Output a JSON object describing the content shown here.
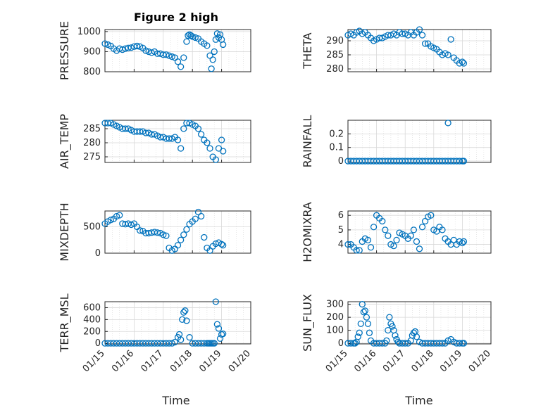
{
  "figure": {
    "title": "Figure 2 high"
  },
  "colors": {
    "marker": "#0072BD",
    "axis": "#262626",
    "grid": "#d9d9d9"
  },
  "chart_data": [
    {
      "type": "scatter",
      "ylabel": "PRESSURE",
      "ylim": [
        800,
        1010
      ],
      "yticks": [
        800,
        900,
        1000
      ],
      "xlim": [
        0,
        5
      ],
      "grid": true,
      "minor_grid": true,
      "series": [
        {
          "x": [
            0.0,
            0.1,
            0.2,
            0.3,
            0.4,
            0.5,
            0.6,
            0.7,
            0.8,
            0.9,
            1.0,
            1.1,
            1.2,
            1.3,
            1.4,
            1.5,
            1.6,
            1.7,
            1.8,
            1.9,
            2.0,
            2.1,
            2.2,
            2.3,
            2.4,
            2.5,
            2.6,
            2.7,
            2.8,
            2.85,
            2.9,
            2.95,
            3.0,
            3.1,
            3.2,
            3.3,
            3.4,
            3.5,
            3.6,
            3.65,
            3.7,
            3.75,
            3.8,
            3.85,
            3.9,
            3.95,
            4.0,
            4.05
          ],
          "y": [
            940,
            935,
            928,
            915,
            905,
            915,
            910,
            915,
            918,
            920,
            925,
            928,
            925,
            918,
            905,
            900,
            895,
            900,
            890,
            890,
            885,
            885,
            880,
            875,
            870,
            850,
            825,
            870,
            950,
            980,
            985,
            980,
            975,
            970,
            965,
            950,
            940,
            930,
            880,
            815,
            860,
            900,
            960,
            990,
            970,
            985,
            960,
            935
          ]
        }
      ]
    },
    {
      "type": "scatter",
      "ylabel": "THETA",
      "ylim": [
        279,
        294
      ],
      "yticks": [
        280,
        285,
        290
      ],
      "xlim": [
        0,
        5
      ],
      "grid": true,
      "minor_grid": true,
      "series": [
        {
          "x": [
            0.0,
            0.1,
            0.2,
            0.3,
            0.4,
            0.5,
            0.6,
            0.7,
            0.8,
            0.9,
            1.0,
            1.1,
            1.2,
            1.3,
            1.4,
            1.5,
            1.6,
            1.7,
            1.8,
            1.9,
            2.0,
            2.1,
            2.2,
            2.3,
            2.4,
            2.5,
            2.6,
            2.7,
            2.8,
            2.9,
            3.0,
            3.1,
            3.2,
            3.3,
            3.4,
            3.5,
            3.6,
            3.7,
            3.8,
            3.9,
            4.0,
            4.05
          ],
          "y": [
            292,
            292.5,
            292,
            293,
            293.5,
            292.5,
            293,
            292,
            291,
            290,
            290.5,
            291,
            291,
            291.5,
            292,
            292,
            292.5,
            292,
            293,
            292.5,
            292.5,
            292,
            293,
            292,
            293,
            294,
            292,
            289,
            289,
            288,
            287.5,
            287,
            286,
            285,
            285.5,
            285,
            290.5,
            284,
            283,
            282,
            282.5,
            282
          ]
        }
      ]
    },
    {
      "type": "scatter",
      "ylabel": "AIR_TEMP",
      "ylim": [
        273,
        288
      ],
      "yticks": [
        275,
        280,
        285
      ],
      "xlim": [
        0,
        5
      ],
      "grid": true,
      "minor_grid": true,
      "series": [
        {
          "x": [
            0.0,
            0.1,
            0.2,
            0.3,
            0.4,
            0.5,
            0.6,
            0.7,
            0.8,
            0.9,
            1.0,
            1.1,
            1.2,
            1.3,
            1.4,
            1.5,
            1.6,
            1.7,
            1.8,
            1.9,
            2.0,
            2.1,
            2.2,
            2.3,
            2.4,
            2.5,
            2.6,
            2.7,
            2.8,
            2.9,
            3.0,
            3.1,
            3.2,
            3.3,
            3.4,
            3.5,
            3.6,
            3.7,
            3.8,
            3.9,
            4.0,
            4.05
          ],
          "y": [
            287,
            287,
            287,
            286.5,
            286,
            285.5,
            285,
            285,
            285,
            284.5,
            284,
            284,
            284,
            284,
            283.5,
            283.5,
            283,
            283,
            282.5,
            282,
            282,
            281.5,
            281.5,
            281.5,
            282,
            281,
            278,
            285,
            287,
            287,
            286.5,
            286,
            285,
            283,
            281,
            280,
            278,
            275,
            274,
            278,
            281,
            277
          ]
        }
      ]
    },
    {
      "type": "scatter",
      "ylabel": "RAINFALL",
      "ylim": [
        -0.01,
        0.3
      ],
      "yticks": [
        0,
        0.1,
        0.2
      ],
      "xlim": [
        0,
        5
      ],
      "grid": true,
      "minor_grid": true,
      "series": [
        {
          "x": [
            0.0,
            0.1,
            0.2,
            0.3,
            0.4,
            0.5,
            0.6,
            0.7,
            0.8,
            0.9,
            1.0,
            1.1,
            1.2,
            1.3,
            1.4,
            1.5,
            1.6,
            1.7,
            1.8,
            1.9,
            2.0,
            2.1,
            2.2,
            2.3,
            2.4,
            2.5,
            2.6,
            2.7,
            2.8,
            2.9,
            3.0,
            3.1,
            3.2,
            3.3,
            3.4,
            3.5,
            3.6,
            3.7,
            3.8,
            3.9,
            4.0,
            4.05
          ],
          "y": [
            0,
            0,
            0,
            0,
            0,
            0,
            0,
            0,
            0,
            0,
            0,
            0,
            0,
            0,
            0,
            0,
            0,
            0,
            0,
            0,
            0,
            0,
            0,
            0,
            0,
            0,
            0,
            0,
            0,
            0,
            0,
            0,
            0,
            0,
            0,
            0,
            0,
            0,
            0,
            0,
            0,
            0
          ]
        },
        {
          "x": [
            3.5
          ],
          "y": [
            0.28
          ]
        }
      ]
    },
    {
      "type": "scatter",
      "ylabel": "MIXDEPTH",
      "ylim": [
        0,
        800
      ],
      "yticks": [
        0,
        500
      ],
      "xlim": [
        0,
        5
      ],
      "grid": true,
      "minor_grid": true,
      "series": [
        {
          "x": [
            0.0,
            0.1,
            0.2,
            0.3,
            0.4,
            0.5,
            0.6,
            0.7,
            0.8,
            0.9,
            1.0,
            1.1,
            1.2,
            1.3,
            1.4,
            1.5,
            1.6,
            1.7,
            1.8,
            1.9,
            2.0,
            2.1,
            2.2,
            2.3,
            2.4,
            2.5,
            2.6,
            2.7,
            2.8,
            2.9,
            3.0,
            3.1,
            3.2,
            3.3,
            3.4,
            3.5,
            3.6,
            3.7,
            3.8,
            3.9,
            4.0,
            4.05
          ],
          "y": [
            560,
            600,
            630,
            650,
            700,
            720,
            560,
            550,
            560,
            540,
            560,
            500,
            430,
            420,
            380,
            380,
            390,
            400,
            390,
            380,
            350,
            330,
            100,
            50,
            80,
            150,
            250,
            350,
            450,
            550,
            600,
            650,
            780,
            700,
            300,
            100,
            50,
            130,
            180,
            200,
            170,
            150
          ]
        }
      ]
    },
    {
      "type": "scatter",
      "ylabel": "H2OMIXRA",
      "ylim": [
        3.4,
        6.3
      ],
      "yticks": [
        4,
        5,
        6
      ],
      "xlim": [
        0,
        5
      ],
      "grid": true,
      "minor_grid": true,
      "series": [
        {
          "x": [
            0.0,
            0.1,
            0.2,
            0.3,
            0.4,
            0.5,
            0.6,
            0.7,
            0.8,
            0.9,
            1.0,
            1.1,
            1.2,
            1.3,
            1.4,
            1.5,
            1.6,
            1.7,
            1.8,
            1.9,
            2.0,
            2.1,
            2.2,
            2.3,
            2.4,
            2.5,
            2.6,
            2.7,
            2.8,
            2.9,
            3.0,
            3.1,
            3.2,
            3.3,
            3.4,
            3.5,
            3.6,
            3.7,
            3.8,
            3.9,
            4.0,
            4.05
          ],
          "y": [
            4.0,
            4.0,
            3.8,
            3.6,
            3.6,
            4.2,
            4.4,
            4.3,
            3.8,
            5.2,
            6.0,
            5.8,
            5.6,
            5.0,
            4.6,
            4.0,
            3.9,
            4.3,
            4.8,
            4.7,
            4.6,
            4.4,
            4.6,
            5.0,
            4.2,
            3.7,
            5.2,
            5.6,
            5.9,
            6.0,
            5.0,
            4.9,
            5.2,
            5.0,
            4.4,
            4.2,
            4.0,
            4.3,
            4.0,
            4.2,
            4.1,
            4.2
          ]
        }
      ]
    },
    {
      "type": "scatter",
      "ylabel": "TERR_MSL",
      "ylim": [
        -10,
        700
      ],
      "yticks": [
        0,
        200,
        400,
        600
      ],
      "xlim": [
        0,
        5
      ],
      "grid": true,
      "minor_grid": true,
      "series": [
        {
          "x": [
            0.0,
            0.1,
            0.2,
            0.3,
            0.4,
            0.5,
            0.6,
            0.7,
            0.8,
            0.9,
            1.0,
            1.1,
            1.2,
            1.3,
            1.4,
            1.5,
            1.6,
            1.7,
            1.8,
            1.9,
            2.0,
            2.1,
            2.2,
            2.3,
            2.4,
            2.5,
            2.55,
            2.6,
            2.65,
            2.7,
            2.75,
            2.8,
            2.9,
            3.0,
            3.1,
            3.2,
            3.3,
            3.4,
            3.5,
            3.55,
            3.6,
            3.65,
            3.7,
            3.75,
            3.8,
            3.85,
            3.9,
            3.95,
            4.0,
            4.05
          ],
          "y": [
            0,
            0,
            0,
            0,
            0,
            0,
            0,
            0,
            0,
            0,
            0,
            0,
            0,
            0,
            0,
            0,
            0,
            0,
            0,
            0,
            0,
            0,
            0,
            0,
            20,
            100,
            150,
            60,
            400,
            520,
            550,
            380,
            100,
            0,
            0,
            0,
            0,
            0,
            0,
            0,
            0,
            0,
            0,
            0,
            700,
            320,
            250,
            80,
            150,
            160
          ]
        }
      ]
    },
    {
      "type": "scatter",
      "ylabel": "SUN_FLUX",
      "ylim": [
        -5,
        320
      ],
      "yticks": [
        0,
        100,
        200,
        300
      ],
      "xlim": [
        0,
        5
      ],
      "grid": true,
      "minor_grid": true,
      "series": [
        {
          "x": [
            0.0,
            0.1,
            0.2,
            0.25,
            0.3,
            0.35,
            0.4,
            0.45,
            0.5,
            0.55,
            0.6,
            0.65,
            0.7,
            0.75,
            0.8,
            0.9,
            1.0,
            1.1,
            1.2,
            1.3,
            1.35,
            1.4,
            1.45,
            1.5,
            1.55,
            1.6,
            1.65,
            1.7,
            1.75,
            1.8,
            1.9,
            2.0,
            2.1,
            2.2,
            2.25,
            2.3,
            2.35,
            2.4,
            2.5,
            2.6,
            2.7,
            2.8,
            2.9,
            3.0,
            3.1,
            3.2,
            3.3,
            3.4,
            3.5,
            3.6,
            3.7,
            3.8,
            3.9,
            4.0,
            4.05
          ],
          "y": [
            0,
            0,
            0,
            0,
            10,
            50,
            80,
            150,
            300,
            240,
            250,
            200,
            150,
            80,
            20,
            0,
            0,
            0,
            0,
            0,
            20,
            100,
            200,
            150,
            130,
            100,
            60,
            30,
            10,
            0,
            0,
            0,
            0,
            20,
            60,
            80,
            90,
            50,
            10,
            0,
            0,
            0,
            0,
            0,
            0,
            0,
            0,
            0,
            20,
            30,
            10,
            0,
            0,
            0,
            0
          ]
        }
      ]
    }
  ],
  "x_axis": {
    "tick_labels": [
      "01/15",
      "01/16",
      "01/17",
      "01/18",
      "01/19",
      "01/20"
    ],
    "label": "Time"
  }
}
